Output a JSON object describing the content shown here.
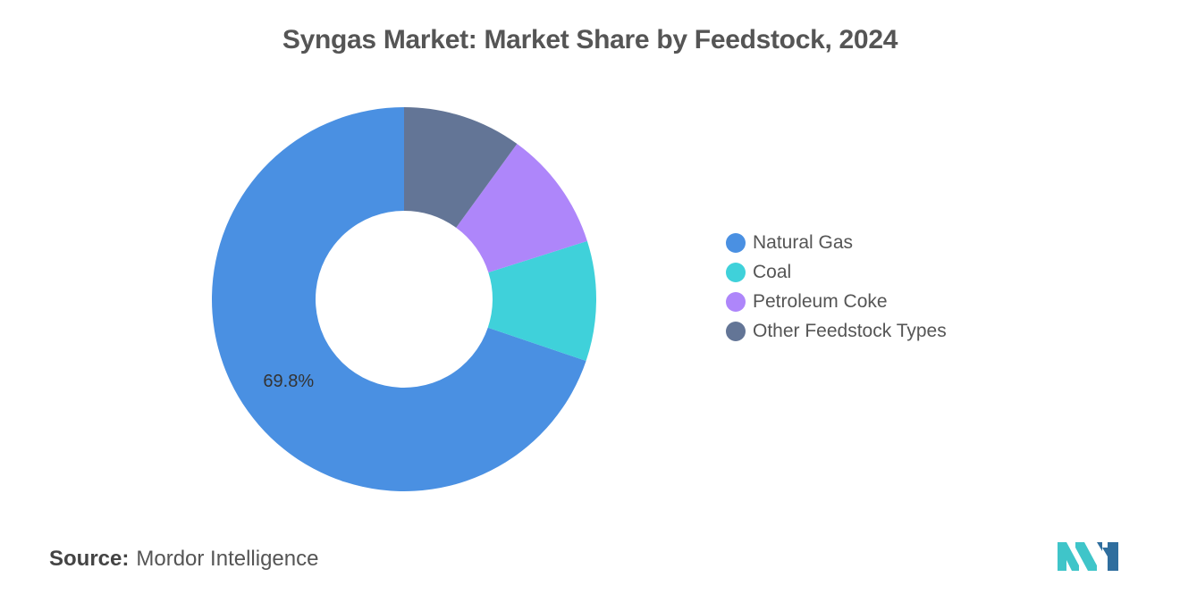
{
  "chart_data": {
    "type": "pie",
    "title": "Syngas Market: Market Share by Feedstock, 2024",
    "donut": true,
    "categories": [
      "Natural Gas",
      "Coal",
      "Petroleum Coke",
      "Other Feedstock Types"
    ],
    "values": [
      69.8,
      10.1,
      10.1,
      10.0
    ],
    "colors": [
      "#4A90E2",
      "#3FD1DA",
      "#AE86FA",
      "#637596"
    ],
    "data_labels": [
      "69.8%",
      "",
      "",
      ""
    ],
    "legend_position": "right",
    "start_angle": "top",
    "direction": "counterclockwise"
  },
  "source": {
    "label": "Source:",
    "text": "Mordor Intelligence"
  },
  "logo": {
    "icon": "mordor-intelligence-logo-icon",
    "colors": [
      "#3FC5C9",
      "#2F6E9E"
    ]
  }
}
